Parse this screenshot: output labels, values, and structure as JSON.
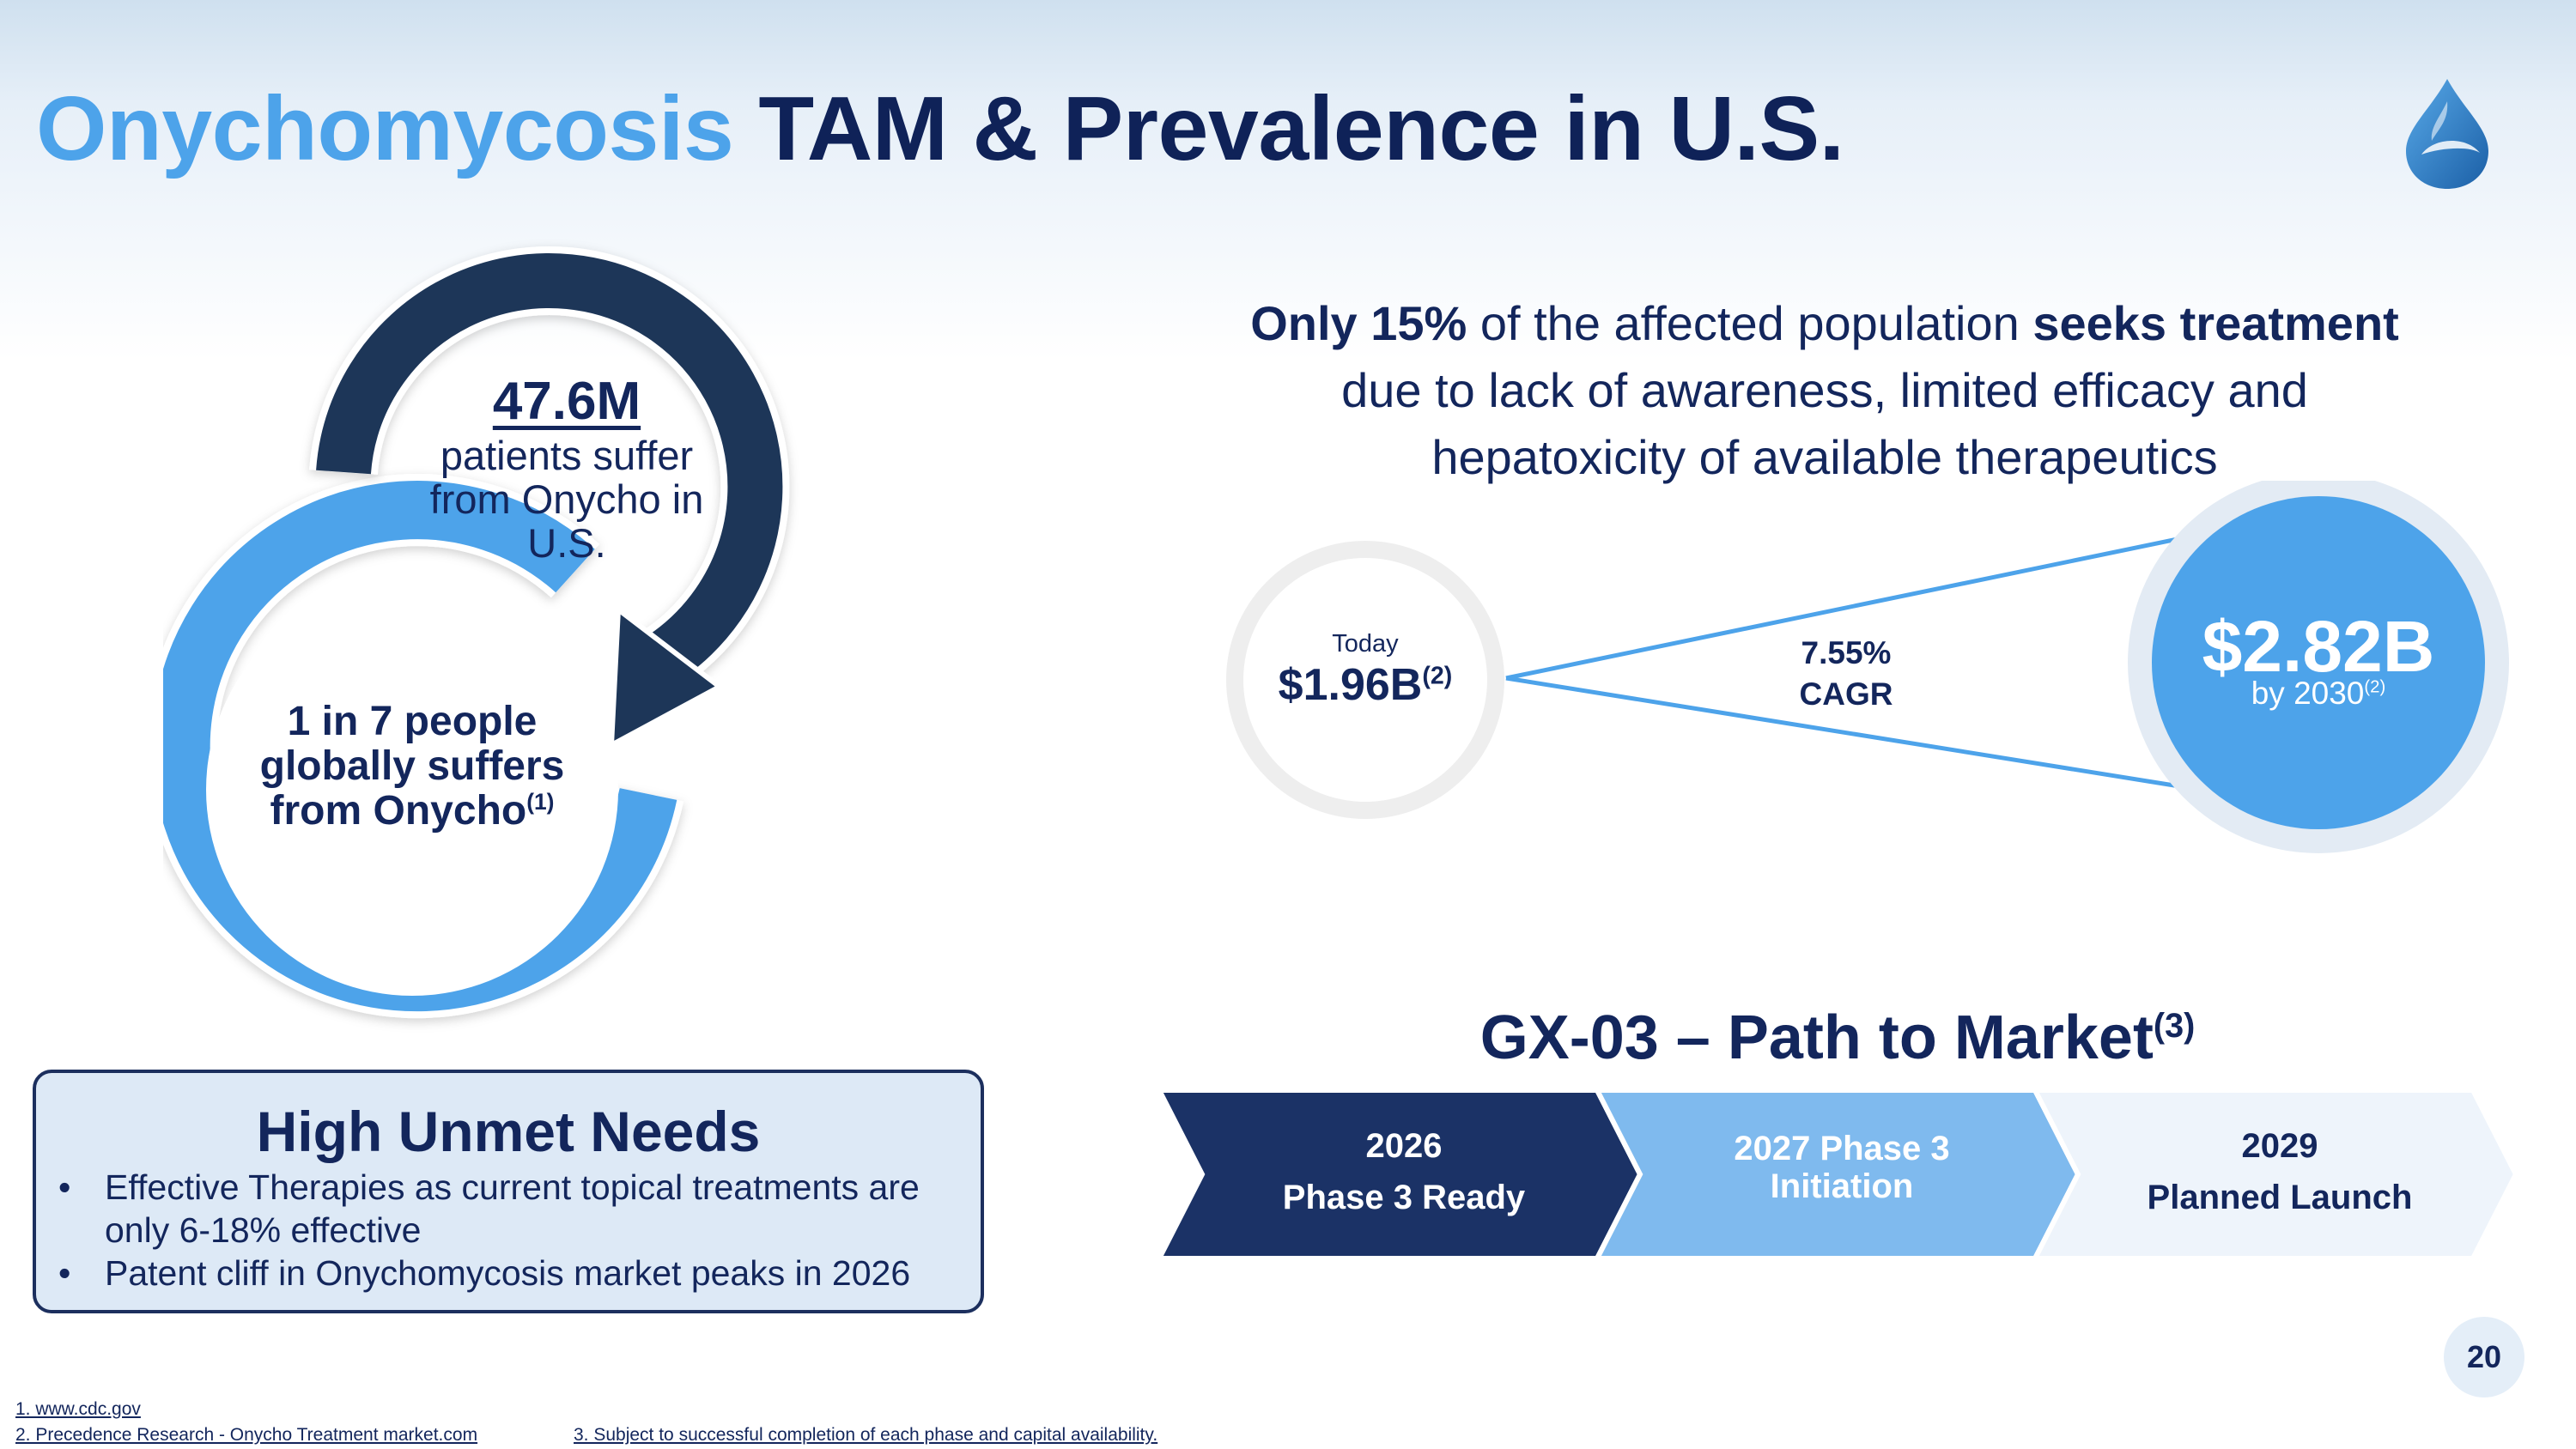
{
  "title": {
    "part1": "Onychomycosis",
    "part2": "TAM & Prevalence in U.S."
  },
  "logo": {
    "icon": "water-drop-logo-icon"
  },
  "prevalence": {
    "stat": "47.6M",
    "desc": "patients suffer from Onycho in U.S.",
    "global_text": "1 in 7 people globally suffers from Onycho",
    "global_ref": "(1)"
  },
  "unmet": {
    "title": "High Unmet Needs",
    "bullet_char": "•",
    "items": [
      "Effective Therapies as current topical treatments are only 6-18% effective",
      "Patent cliff in Onychomycosis market peaks in 2026"
    ]
  },
  "headline": {
    "b1": "Only 15%",
    "t1": " of the affected population ",
    "b2": "seeks treatment",
    "line2": "due to lack of awareness, limited efficacy and",
    "line3": "hepatoxicity of available therapeutics"
  },
  "market": {
    "today_label": "Today",
    "today_value": "$1.96B",
    "today_ref": "(2)",
    "cagr_pct": "7.55%",
    "cagr_label": "CAGR",
    "future_value": "$2.82B",
    "future_by": "by 2030",
    "future_ref": "(2)"
  },
  "path": {
    "title": "GX-03 – Path to Market",
    "title_ref": "(3)",
    "steps": [
      {
        "year": "2026",
        "label": "Phase 3 Ready"
      },
      {
        "text": "2027 Phase 3 Initiation"
      },
      {
        "year": "2029",
        "label": "Planned Launch"
      }
    ]
  },
  "page_number": "20",
  "footnotes": [
    "1. www.cdc.gov",
    "2. Precedence Research - Onycho Treatment market.com",
    "3. Subject to successful completion of each phase and capital availability."
  ],
  "colors": {
    "navy": "#13265c",
    "accent": "#4da3ea",
    "dark_arrow": "#1d3658",
    "light_step": "#7fbaee"
  }
}
